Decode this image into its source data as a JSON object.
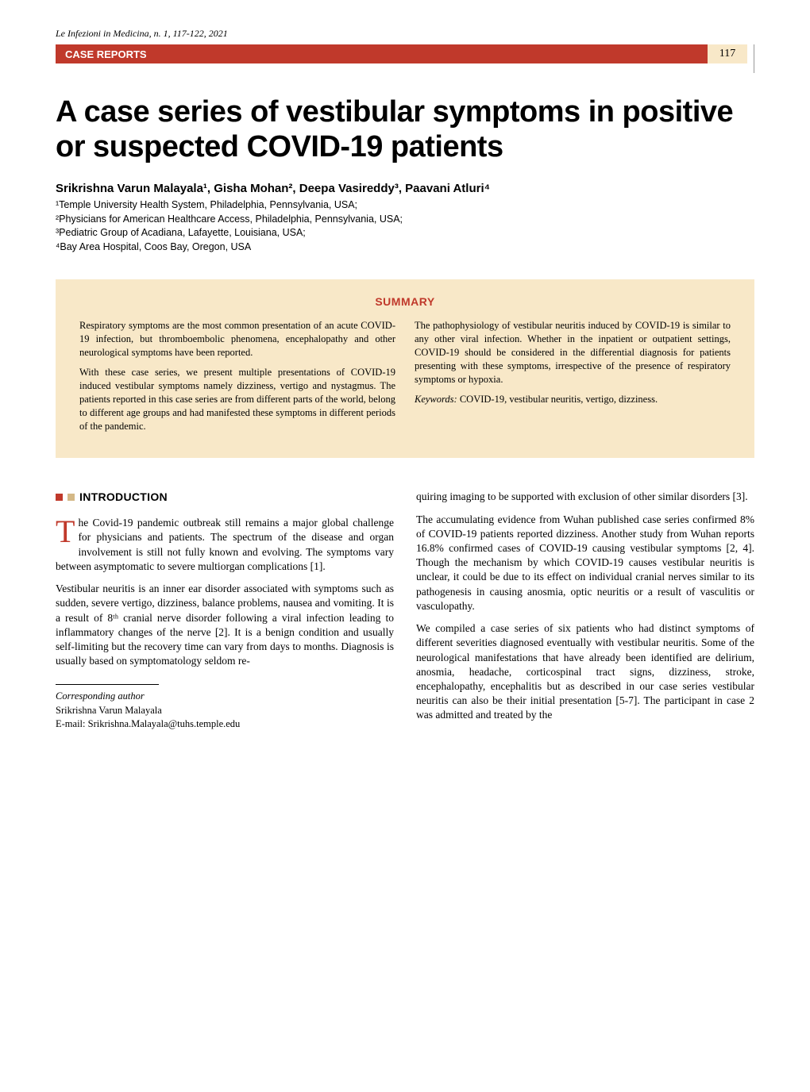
{
  "journal_ref": "Le Infezioni in Medicina, n. 1, 117-122, 2021",
  "header_label": "CASE REPORTS",
  "page_number": "117",
  "title": "A case series of vestibular symptoms in positive or suspected COVID-19 patients",
  "authors": "Srikrishna Varun Malayala¹, Gisha Mohan², Deepa Vasireddy³, Paavani Atluri⁴",
  "affiliations": [
    "¹Temple University Health System, Philadelphia, Pennsylvania, USA;",
    "²Physicians for American Healthcare Access, Philadelphia, Pennsylvania, USA;",
    "³Pediatric Group of Acadiana, Lafayette, Louisiana, USA;",
    "⁴Bay Area Hospital, Coos Bay, Oregon, USA"
  ],
  "summary": {
    "heading": "SUMMARY",
    "left_paragraphs": [
      "Respiratory symptoms are the most common presentation of an acute COVID-19 infection, but thromboembolic phenomena, encephalopathy and other neurological symptoms have been reported.",
      "With these case series, we present multiple presentations of COVID-19 induced vestibular symptoms namely dizziness, vertigo and nystagmus. The patients reported in this case series are from different parts of the world, belong to different age groups and had manifested these symptoms in different periods of the pandemic."
    ],
    "right_paragraphs": [
      "The pathophysiology of vestibular neuritis induced by COVID-19 is similar to any other viral infection. Whether in the inpatient or outpatient settings, COVID-19 should be considered in the differential diagnosis for patients presenting with these symptoms, irrespective of the presence of respiratory symptoms or hypoxia."
    ],
    "keywords_label": "Keywords:",
    "keywords_text": " COVID-19, vestibular neuritis, vertigo, dizziness."
  },
  "intro_heading": "INTRODUCTION",
  "body": {
    "left_col": {
      "dropcap": "T",
      "first_para_rest": "he Covid-19 pandemic outbreak still remains a major global challenge for physicians and patients. The spectrum of the disease and organ involvement is still not fully known and evolving. The symptoms vary between asymptomatic to severe multiorgan complications [1].",
      "p2": "Vestibular neuritis is an inner ear disorder associated with symptoms such as sudden, severe vertigo, dizziness, balance problems, nausea and vomiting. It is a result of 8ᵗʰ cranial nerve disorder following a viral infection leading to inflammatory changes of the nerve [2]. It is a benign condition and usually self-limiting but the recovery time can vary from days to months. Diagnosis is usually based on symptomatology seldom re-"
    },
    "right_col": {
      "p1": "quiring imaging to be supported with exclusion of other similar disorders [3].",
      "p2": "The accumulating evidence from Wuhan published case series confirmed 8% of COVID-19 patients reported dizziness. Another study from Wuhan reports 16.8% confirmed cases of COVID-19 causing vestibular symptoms [2, 4]. Though the mechanism by which COVID-19 causes vestibular neuritis is unclear, it could be due to its effect on individual cranial nerves similar to its pathogenesis in causing anosmia, optic neuritis or a result of vasculitis or vasculopathy.",
      "p3": "We compiled a case series of six patients who had distinct symptoms of different severities diagnosed eventually with vestibular neuritis. Some of the neurological manifestations that have already been identified are delirium, anosmia, headache, corticospinal tract signs, dizziness, stroke, encephalopathy, encephalitis but as described in our case series vestibular neuritis can also be their initial presentation [5-7]. The participant in case 2 was admitted and treated by the"
    }
  },
  "corresponding": {
    "label": "Corresponding author",
    "name": "Srikrishna Varun Malayala",
    "email": "E-mail: Srikrishna.Malayala@tuhs.temple.edu"
  },
  "colors": {
    "accent_red": "#c0392b",
    "tan_bg": "#f8e8c8",
    "tan_square": "#d4b886"
  }
}
